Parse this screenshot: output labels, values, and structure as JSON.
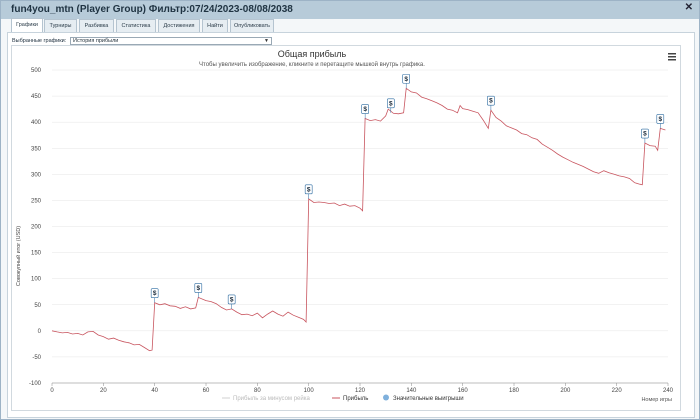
{
  "window": {
    "title": "fun4you_mtn (Player Group) Фильтр:07/24/2023-08/08/2038"
  },
  "tabs": [
    {
      "label": "Графики"
    },
    {
      "label": "Турниры"
    },
    {
      "label": "Разбивка"
    },
    {
      "label": "Статистика"
    },
    {
      "label": "Достижения"
    },
    {
      "label": "Найти"
    },
    {
      "label": "Опубликовать"
    }
  ],
  "graph_selector": {
    "label": "Выбранные графики:",
    "value": "История прибыли"
  },
  "colors": {
    "profit_line": "#c8555f",
    "marker_border": "#2a6aa0",
    "legend_dot": "#7fb0dc",
    "minus_rake": "#d0d0d0"
  },
  "chart_data": {
    "type": "line",
    "title": "Общая прибыль",
    "subtitle": "Чтобы увеличить изображение, кликните и перетащите мышкой внутрь графика.",
    "xlabel": "Номер игры",
    "ylabel": "Совокупный итог (USD)",
    "xlim": [
      0,
      240
    ],
    "ylim": [
      -100,
      500
    ],
    "x_ticks": [
      0,
      20,
      40,
      60,
      80,
      100,
      120,
      140,
      160,
      180,
      200,
      220,
      240
    ],
    "y_ticks": [
      -100,
      -50,
      0,
      50,
      100,
      150,
      200,
      250,
      300,
      350,
      400,
      450,
      500
    ],
    "legend": [
      {
        "name": "Прибыль за минусом рейка"
      },
      {
        "name": "Прибыль"
      },
      {
        "name": "Значительные выигрыши"
      }
    ],
    "series": [
      {
        "name": "Прибыль",
        "points": [
          [
            2,
            -2
          ],
          [
            4,
            -4
          ],
          [
            6,
            -3
          ],
          [
            8,
            -6
          ],
          [
            10,
            -5
          ],
          [
            12,
            -8
          ],
          [
            14,
            -2
          ],
          [
            16,
            -1
          ],
          [
            18,
            -8
          ],
          [
            20,
            -11
          ],
          [
            22,
            -16
          ],
          [
            24,
            -14
          ],
          [
            26,
            -18
          ],
          [
            28,
            -21
          ],
          [
            30,
            -23
          ],
          [
            32,
            -27
          ],
          [
            34,
            -26
          ],
          [
            36,
            -32
          ],
          [
            38,
            -38
          ],
          [
            39,
            -37
          ],
          [
            40,
            54
          ],
          [
            42,
            50
          ],
          [
            44,
            52
          ],
          [
            46,
            48
          ],
          [
            48,
            47
          ],
          [
            50,
            43
          ],
          [
            52,
            46
          ],
          [
            54,
            42
          ],
          [
            56,
            44
          ],
          [
            57,
            64
          ],
          [
            60,
            58
          ],
          [
            62,
            56
          ],
          [
            64,
            52
          ],
          [
            66,
            45
          ],
          [
            68,
            40
          ],
          [
            70,
            42
          ],
          [
            72,
            36
          ],
          [
            74,
            31
          ],
          [
            76,
            32
          ],
          [
            78,
            29
          ],
          [
            80,
            34
          ],
          [
            82,
            25
          ],
          [
            84,
            32
          ],
          [
            86,
            38
          ],
          [
            88,
            32
          ],
          [
            90,
            28
          ],
          [
            92,
            36
          ],
          [
            94,
            30
          ],
          [
            96,
            26
          ],
          [
            98,
            22
          ],
          [
            99,
            17
          ],
          [
            100,
            253
          ],
          [
            102,
            246
          ],
          [
            104,
            247
          ],
          [
            106,
            246
          ],
          [
            108,
            244
          ],
          [
            110,
            245
          ],
          [
            112,
            240
          ],
          [
            114,
            243
          ],
          [
            116,
            239
          ],
          [
            118,
            240
          ],
          [
            120,
            235
          ],
          [
            121,
            230
          ],
          [
            122,
            407
          ],
          [
            124,
            403
          ],
          [
            126,
            405
          ],
          [
            128,
            402
          ],
          [
            130,
            412
          ],
          [
            131,
            425
          ],
          [
            133,
            417
          ],
          [
            135,
            416
          ],
          [
            137,
            418
          ],
          [
            138,
            465
          ],
          [
            140,
            458
          ],
          [
            142,
            456
          ],
          [
            144,
            448
          ],
          [
            146,
            445
          ],
          [
            148,
            441
          ],
          [
            150,
            437
          ],
          [
            152,
            432
          ],
          [
            154,
            425
          ],
          [
            156,
            423
          ],
          [
            158,
            418
          ],
          [
            159,
            432
          ],
          [
            160,
            426
          ],
          [
            162,
            424
          ],
          [
            164,
            421
          ],
          [
            166,
            418
          ],
          [
            168,
            404
          ],
          [
            170,
            388
          ],
          [
            171,
            423
          ],
          [
            173,
            409
          ],
          [
            175,
            402
          ],
          [
            177,
            393
          ],
          [
            179,
            389
          ],
          [
            181,
            385
          ],
          [
            183,
            378
          ],
          [
            185,
            376
          ],
          [
            187,
            370
          ],
          [
            189,
            367
          ],
          [
            191,
            358
          ],
          [
            193,
            352
          ],
          [
            195,
            346
          ],
          [
            197,
            339
          ],
          [
            199,
            333
          ],
          [
            201,
            328
          ],
          [
            203,
            323
          ],
          [
            205,
            319
          ],
          [
            207,
            315
          ],
          [
            209,
            310
          ],
          [
            211,
            305
          ],
          [
            213,
            302
          ],
          [
            215,
            307
          ],
          [
            217,
            303
          ],
          [
            219,
            300
          ],
          [
            221,
            297
          ],
          [
            223,
            295
          ],
          [
            225,
            292
          ],
          [
            227,
            284
          ],
          [
            229,
            281
          ],
          [
            230,
            280
          ],
          [
            231,
            360
          ],
          [
            233,
            355
          ],
          [
            235,
            354
          ],
          [
            236,
            346
          ],
          [
            237,
            388
          ],
          [
            239,
            385
          ]
        ]
      }
    ],
    "significant_wins": [
      [
        40,
        54
      ],
      [
        57,
        64
      ],
      [
        70,
        42
      ],
      [
        100,
        253
      ],
      [
        122,
        407
      ],
      [
        132,
        418
      ],
      [
        138,
        465
      ],
      [
        171,
        423
      ],
      [
        231,
        360
      ],
      [
        237,
        388
      ]
    ],
    "marker_symbol": "$"
  }
}
